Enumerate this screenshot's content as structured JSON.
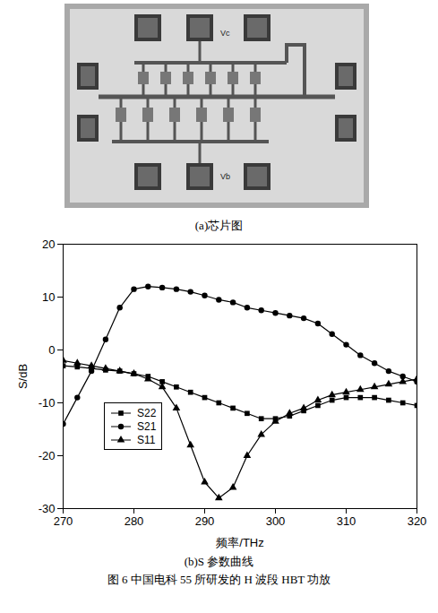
{
  "figure": {
    "caption": "图 6 中国电科 55 所研发的 H 波段 HBT 功放",
    "panel_a": {
      "caption": "(a)芯片图",
      "labels": [
        "Vc",
        "Vb"
      ]
    }
  },
  "chart_data": {
    "type": "line",
    "caption": "(b)S 参数曲线",
    "x_label": "频率/THz",
    "y_label": "S/dB",
    "xlim": [
      270,
      320
    ],
    "xticks": [
      270,
      280,
      290,
      300,
      310,
      320
    ],
    "ylim": [
      -30,
      20
    ],
    "yticks": [
      -30,
      -20,
      -10,
      0,
      10,
      20
    ],
    "legend": "lower left",
    "x": [
      270,
      272,
      274,
      276,
      278,
      280,
      282,
      284,
      286,
      288,
      290,
      292,
      294,
      296,
      298,
      300,
      302,
      304,
      306,
      308,
      310,
      312,
      314,
      316,
      318,
      320
    ],
    "series": [
      {
        "name": "S22",
        "color": "#000000",
        "marker": "square",
        "values": [
          -3,
          -3.2,
          -3.5,
          -3.8,
          -4,
          -4.5,
          -5,
          -6,
          -7,
          -8,
          -9,
          -10,
          -11,
          -12,
          -13,
          -13,
          -12.5,
          -11.5,
          -10.5,
          -9.5,
          -9,
          -9,
          -9,
          -9.5,
          -10,
          -10.5
        ]
      },
      {
        "name": "S21",
        "color": "#000000",
        "marker": "circle",
        "values": [
          -14,
          -9,
          -4,
          2,
          8,
          11.5,
          12,
          11.8,
          11.5,
          11,
          10.3,
          9.5,
          9,
          8,
          7.5,
          7,
          6.5,
          6,
          5,
          3,
          1,
          -1,
          -2.5,
          -4,
          -5,
          -6
        ]
      },
      {
        "name": "S11",
        "color": "#000000",
        "marker": "triangle",
        "values": [
          -2,
          -2.5,
          -3,
          -3.5,
          -4,
          -4.5,
          -5.5,
          -7,
          -11,
          -18,
          -25,
          -28,
          -26,
          -20,
          -16,
          -13.5,
          -12,
          -11,
          -9.5,
          -8.5,
          -8,
          -7.5,
          -7,
          -6.5,
          -6,
          -5.5
        ]
      }
    ]
  }
}
